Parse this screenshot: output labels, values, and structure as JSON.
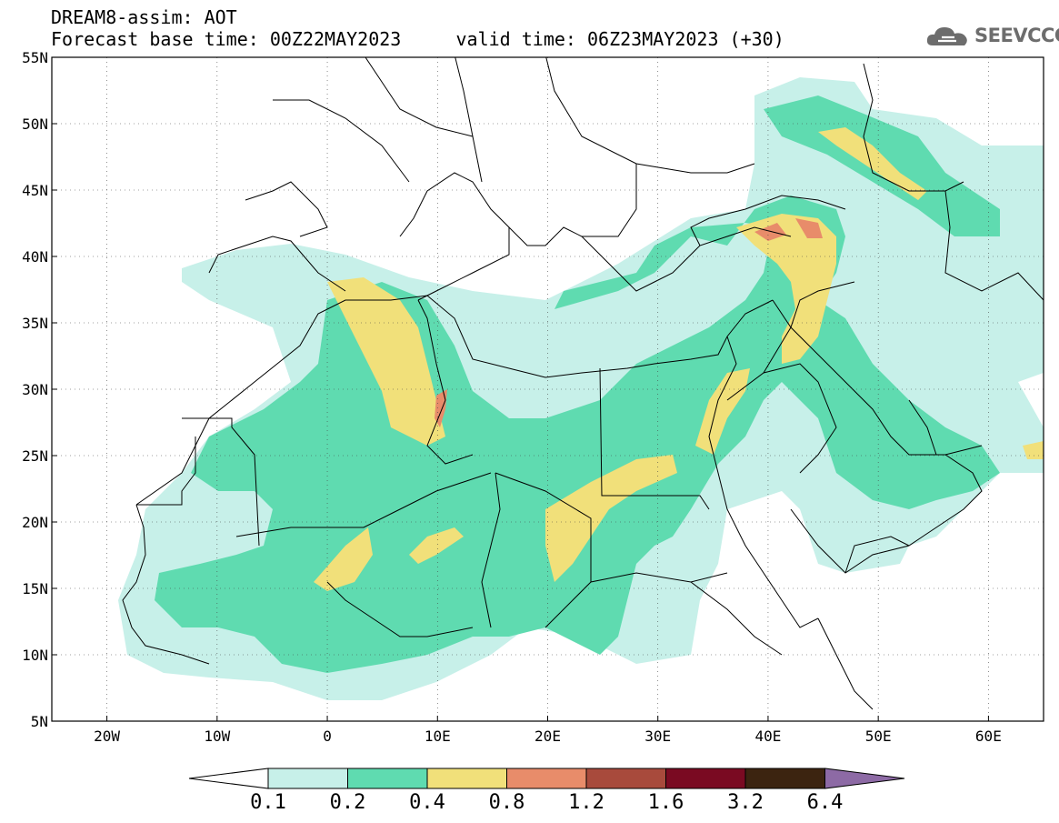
{
  "header": {
    "title_line1": "DREAM8-assim: AOT",
    "title_line2": "Forecast base time: 00Z22MAY2023     valid time: 06Z23MAY2023 (+30)"
  },
  "logo": {
    "text": "SEEVCCC",
    "icon": "cloud-icon"
  },
  "map": {
    "lon_range": [
      -25,
      65
    ],
    "lat_range": [
      5,
      55
    ],
    "lat_ticks": [
      {
        "value": 55,
        "label": "55N"
      },
      {
        "value": 50,
        "label": "50N"
      },
      {
        "value": 45,
        "label": "45N"
      },
      {
        "value": 40,
        "label": "40N"
      },
      {
        "value": 35,
        "label": "35N"
      },
      {
        "value": 30,
        "label": "30N"
      },
      {
        "value": 25,
        "label": "25N"
      },
      {
        "value": 20,
        "label": "20N"
      },
      {
        "value": 15,
        "label": "15N"
      },
      {
        "value": 10,
        "label": "10N"
      },
      {
        "value": 5,
        "label": "5N"
      }
    ],
    "lon_ticks": [
      {
        "value": -20,
        "label": "20W"
      },
      {
        "value": -10,
        "label": "10W"
      },
      {
        "value": 0,
        "label": "0"
      },
      {
        "value": 10,
        "label": "10E"
      },
      {
        "value": 20,
        "label": "20E"
      },
      {
        "value": 30,
        "label": "30E"
      },
      {
        "value": 40,
        "label": "40E"
      },
      {
        "value": 50,
        "label": "50E"
      },
      {
        "value": 60,
        "label": "60E"
      }
    ],
    "gridlines": true,
    "colors": {
      "c0.1": "#c7f0e9",
      "c0.2": "#5fdbb0",
      "c0.4": "#f1e07a",
      "c0.8": "#e88c6a",
      "c1.2": "#a84a3c",
      "c1.6": "#7a0a22",
      "c3.2": "#3c2410",
      "c6.4": "#8d6aa5",
      "coast": "#000000"
    }
  },
  "legend": {
    "labels": [
      "0.1",
      "0.2",
      "0.4",
      "0.8",
      "1.2",
      "1.6",
      "3.2",
      "6.4"
    ],
    "colors": [
      "#c7f0e9",
      "#5fdbb0",
      "#f1e07a",
      "#e88c6a",
      "#a84a3c",
      "#7a0a22",
      "#3c2410"
    ],
    "under_color": "#ffffff",
    "over_color": "#8d6aa5"
  }
}
